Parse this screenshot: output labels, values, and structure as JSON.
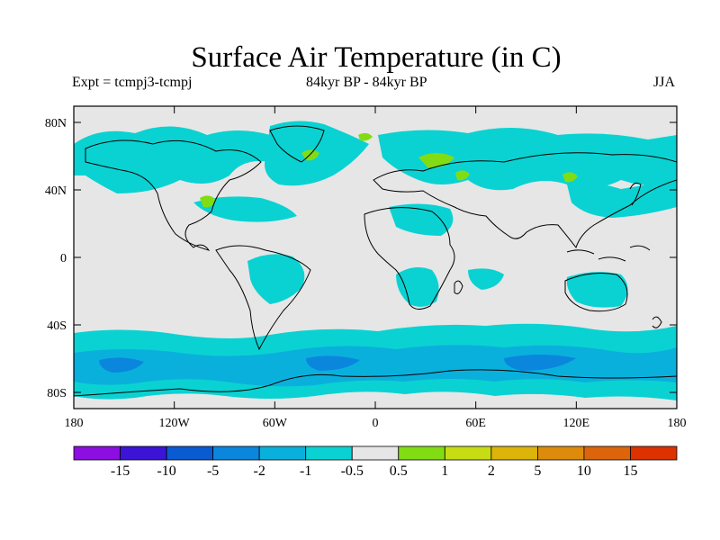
{
  "title": "Surface Air Temperature (in C)",
  "subtitle_left": "Expt = tcmpj3-tcmpj",
  "subtitle_center": "84kyr BP - 84kyr BP",
  "subtitle_right": "JJA",
  "lat_ticks": [
    "80N",
    "40N",
    "0",
    "40S",
    "80S"
  ],
  "lon_ticks": [
    "180",
    "120W",
    "60W",
    "0",
    "60E",
    "120E",
    "180"
  ],
  "colorbar": {
    "colors": [
      "#8c0ee0",
      "#3b14d6",
      "#0a5ad2",
      "#0a87dc",
      "#0ab0dc",
      "#0ad2d2",
      "#e6e6e6",
      "#82dc14",
      "#c8dc14",
      "#dcb40a",
      "#dc8c0a",
      "#dc640a",
      "#dc3200"
    ],
    "labels": [
      "-15",
      "-10",
      "-5",
      "-2",
      "-1",
      "-0.5",
      "0.5",
      "1",
      "2",
      "5",
      "10",
      "15"
    ]
  },
  "colors": {
    "background": "#e6e6e6",
    "cool_light": "#0ad2d2",
    "cool_mid": "#0ab0dc",
    "cool_deep": "#0a87dc",
    "warm": "#82dc14",
    "warm_light": "#c8dc14"
  }
}
